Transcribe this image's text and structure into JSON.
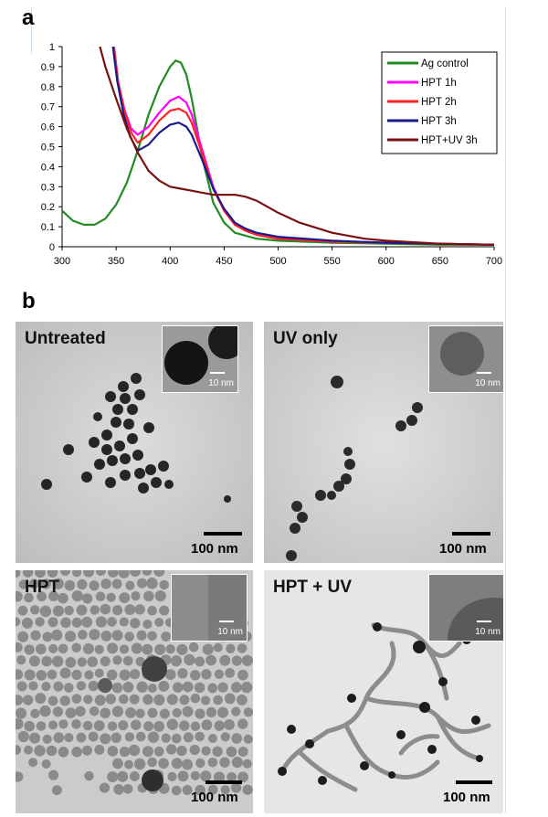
{
  "panels": {
    "a_letter": "a",
    "b_letter": "b"
  },
  "chart_data": {
    "type": "line",
    "title": "",
    "xlabel": "",
    "ylabel": "",
    "xlim": [
      300,
      700
    ],
    "ylim": [
      0,
      1
    ],
    "x_ticks": [
      "300",
      "350",
      "400",
      "450",
      "500",
      "550",
      "600",
      "650",
      "700"
    ],
    "y_ticks": [
      "0",
      "0.1",
      "0.2",
      "0.3",
      "0.4",
      "0.5",
      "0.6",
      "0.7",
      "0.8",
      "0.9",
      "1"
    ],
    "legend_position": "top-right",
    "grid": false,
    "series": [
      {
        "name": "Ag control",
        "color": "#228b22",
        "points": [
          [
            300,
            0.18
          ],
          [
            310,
            0.13
          ],
          [
            320,
            0.11
          ],
          [
            330,
            0.11
          ],
          [
            340,
            0.14
          ],
          [
            350,
            0.21
          ],
          [
            360,
            0.32
          ],
          [
            370,
            0.48
          ],
          [
            380,
            0.66
          ],
          [
            390,
            0.8
          ],
          [
            400,
            0.9
          ],
          [
            405,
            0.93
          ],
          [
            410,
            0.92
          ],
          [
            415,
            0.86
          ],
          [
            420,
            0.74
          ],
          [
            430,
            0.44
          ],
          [
            440,
            0.22
          ],
          [
            450,
            0.12
          ],
          [
            460,
            0.07
          ],
          [
            480,
            0.04
          ],
          [
            500,
            0.03
          ],
          [
            550,
            0.02
          ],
          [
            600,
            0.015
          ],
          [
            650,
            0.01
          ],
          [
            700,
            0.01
          ]
        ]
      },
      {
        "name": "HPT 1h",
        "color": "#ff00ff",
        "points": [
          [
            348,
            1.0
          ],
          [
            352,
            0.82
          ],
          [
            358,
            0.68
          ],
          [
            364,
            0.59
          ],
          [
            370,
            0.56
          ],
          [
            380,
            0.6
          ],
          [
            390,
            0.67
          ],
          [
            400,
            0.73
          ],
          [
            408,
            0.75
          ],
          [
            415,
            0.72
          ],
          [
            420,
            0.66
          ],
          [
            430,
            0.48
          ],
          [
            440,
            0.3
          ],
          [
            450,
            0.18
          ],
          [
            460,
            0.11
          ],
          [
            470,
            0.08
          ],
          [
            480,
            0.06
          ],
          [
            500,
            0.04
          ],
          [
            550,
            0.025
          ],
          [
            600,
            0.02
          ],
          [
            650,
            0.015
          ],
          [
            700,
            0.01
          ]
        ]
      },
      {
        "name": "HPT 2h",
        "color": "#ff2020",
        "points": [
          [
            348,
            1.0
          ],
          [
            352,
            0.82
          ],
          [
            358,
            0.67
          ],
          [
            364,
            0.57
          ],
          [
            370,
            0.52
          ],
          [
            380,
            0.56
          ],
          [
            390,
            0.63
          ],
          [
            400,
            0.68
          ],
          [
            408,
            0.69
          ],
          [
            415,
            0.67
          ],
          [
            420,
            0.62
          ],
          [
            430,
            0.46
          ],
          [
            440,
            0.29
          ],
          [
            450,
            0.18
          ],
          [
            460,
            0.11
          ],
          [
            470,
            0.08
          ],
          [
            480,
            0.06
          ],
          [
            500,
            0.04
          ],
          [
            550,
            0.025
          ],
          [
            600,
            0.02
          ],
          [
            650,
            0.015
          ],
          [
            700,
            0.01
          ]
        ]
      },
      {
        "name": "HPT 3h",
        "color": "#1a1a8a",
        "points": [
          [
            347,
            1.0
          ],
          [
            351,
            0.83
          ],
          [
            357,
            0.66
          ],
          [
            363,
            0.55
          ],
          [
            370,
            0.48
          ],
          [
            380,
            0.51
          ],
          [
            390,
            0.57
          ],
          [
            400,
            0.61
          ],
          [
            408,
            0.62
          ],
          [
            415,
            0.6
          ],
          [
            420,
            0.56
          ],
          [
            430,
            0.43
          ],
          [
            440,
            0.29
          ],
          [
            450,
            0.19
          ],
          [
            460,
            0.12
          ],
          [
            470,
            0.09
          ],
          [
            480,
            0.07
          ],
          [
            500,
            0.05
          ],
          [
            550,
            0.03
          ],
          [
            600,
            0.02
          ],
          [
            650,
            0.015
          ],
          [
            700,
            0.01
          ]
        ]
      },
      {
        "name": "HPT+UV 3h",
        "color": "#7a1010",
        "points": [
          [
            335,
            1.0
          ],
          [
            340,
            0.9
          ],
          [
            350,
            0.74
          ],
          [
            360,
            0.59
          ],
          [
            370,
            0.47
          ],
          [
            380,
            0.38
          ],
          [
            390,
            0.33
          ],
          [
            400,
            0.3
          ],
          [
            410,
            0.29
          ],
          [
            420,
            0.28
          ],
          [
            430,
            0.27
          ],
          [
            440,
            0.26
          ],
          [
            450,
            0.26
          ],
          [
            460,
            0.26
          ],
          [
            470,
            0.25
          ],
          [
            480,
            0.23
          ],
          [
            490,
            0.2
          ],
          [
            500,
            0.17
          ],
          [
            520,
            0.12
          ],
          [
            550,
            0.07
          ],
          [
            580,
            0.04
          ],
          [
            600,
            0.03
          ],
          [
            650,
            0.015
          ],
          [
            700,
            0.01
          ]
        ]
      }
    ]
  },
  "tem": {
    "untreated": {
      "label": "Untreated",
      "inset_scale": "10 nm",
      "scale": "100 nm"
    },
    "uv_only": {
      "label": "UV only",
      "inset_scale": "10 nm",
      "scale": "100 nm"
    },
    "hpt": {
      "label": "HPT",
      "inset_scale": "10 nm",
      "scale": "100 nm"
    },
    "hpt_uv": {
      "label": "HPT + UV",
      "inset_scale": "10 nm",
      "scale": "100 nm"
    }
  }
}
